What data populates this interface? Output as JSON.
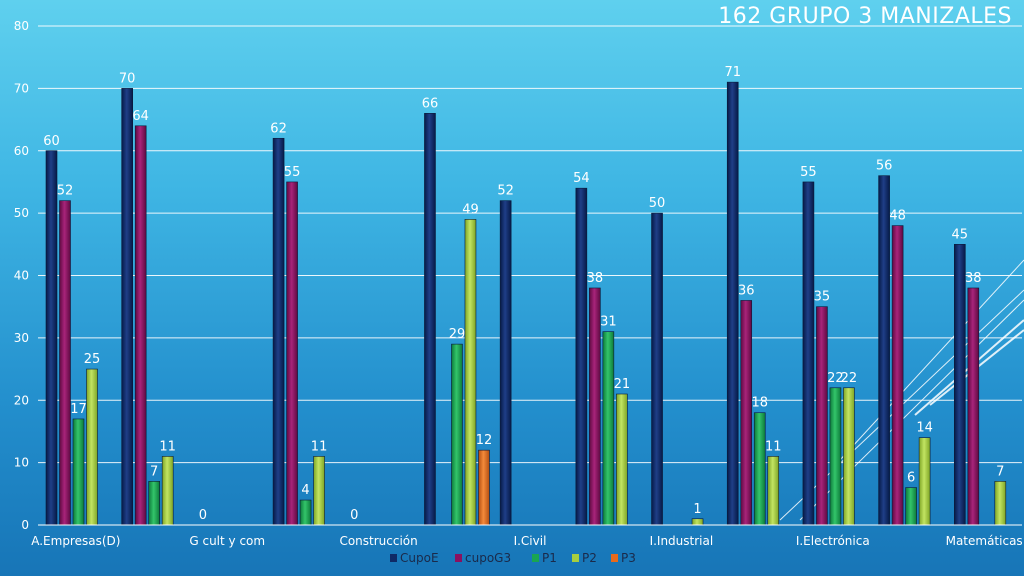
{
  "colors": {
    "CupoE": "#0f2a66",
    "cupoG3": "#8a1160",
    "P1": "#1aa551",
    "P2": "#a6cf3f",
    "P3": "#e86a1c",
    "gridline": "#ffffff",
    "text": "#ffffff"
  },
  "chart_data": {
    "type": "bar",
    "title": "162  GRUPO 3  MANIZALES",
    "xlabel": "",
    "ylabel": "",
    "ylim": [
      0,
      80
    ],
    "yticks": [
      0,
      10,
      20,
      30,
      40,
      50,
      60,
      70,
      80
    ],
    "grid": true,
    "legend_position": "bottom",
    "categories": [
      "A.Empresas(D)",
      "",
      "G cult y com",
      "",
      "Construcción",
      "",
      "I.Civil",
      "",
      "I.Industrial",
      "",
      "I.Electrónica",
      "",
      "Matemáticas"
    ],
    "series": [
      {
        "name": "CupoE",
        "values": [
          60,
          70,
          0,
          62,
          0,
          66,
          52,
          54,
          50,
          71,
          55,
          56,
          45
        ]
      },
      {
        "name": "cupoG3",
        "values": [
          52,
          64,
          null,
          55,
          null,
          null,
          null,
          38,
          null,
          36,
          35,
          48,
          38
        ]
      },
      {
        "name": "P1",
        "values": [
          17,
          7,
          null,
          4,
          null,
          29,
          null,
          31,
          null,
          18,
          22,
          6,
          null
        ]
      },
      {
        "name": "P2",
        "values": [
          25,
          11,
          null,
          11,
          null,
          49,
          null,
          21,
          1,
          11,
          22,
          14,
          7
        ]
      },
      {
        "name": "P3",
        "values": [
          null,
          null,
          null,
          null,
          null,
          12,
          null,
          null,
          null,
          null,
          null,
          null,
          null
        ]
      }
    ]
  }
}
